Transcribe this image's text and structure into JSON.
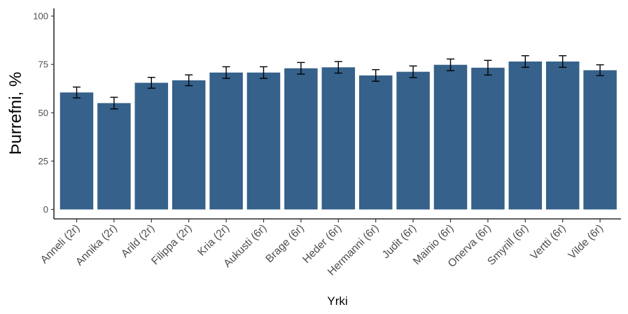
{
  "chart_data": {
    "type": "bar",
    "xlabel": "Yrki",
    "ylabel": "Þurrefni, %",
    "ylim": [
      0,
      100
    ],
    "yticks": [
      0,
      25,
      50,
      75,
      100
    ],
    "categories": [
      "Anneli (2r)",
      "Annika (2r)",
      "Arild (2r)",
      "Filippa (2r)",
      "Kria (2r)",
      "Aukusti (6r)",
      "Brage (6r)",
      "Heder (6r)",
      "Hermanni (6r)",
      "Judit (6r)",
      "Mainio (6r)",
      "Onerva (6r)",
      "Smyrill (6r)",
      "Vertti (6r)",
      "Vilde (6r)"
    ],
    "values": [
      60.5,
      55,
      65.5,
      66.8,
      70.8,
      70.8,
      73,
      73.5,
      69.3,
      71.2,
      74.8,
      73.3,
      76.5,
      76.5,
      72
    ],
    "error": [
      2.8,
      3.0,
      2.8,
      2.8,
      3.0,
      3.0,
      3.0,
      3.0,
      3.0,
      3.0,
      3.0,
      3.8,
      3.0,
      3.0,
      2.8
    ],
    "bar_color": "#35618a",
    "grid": false,
    "legend": "none"
  }
}
